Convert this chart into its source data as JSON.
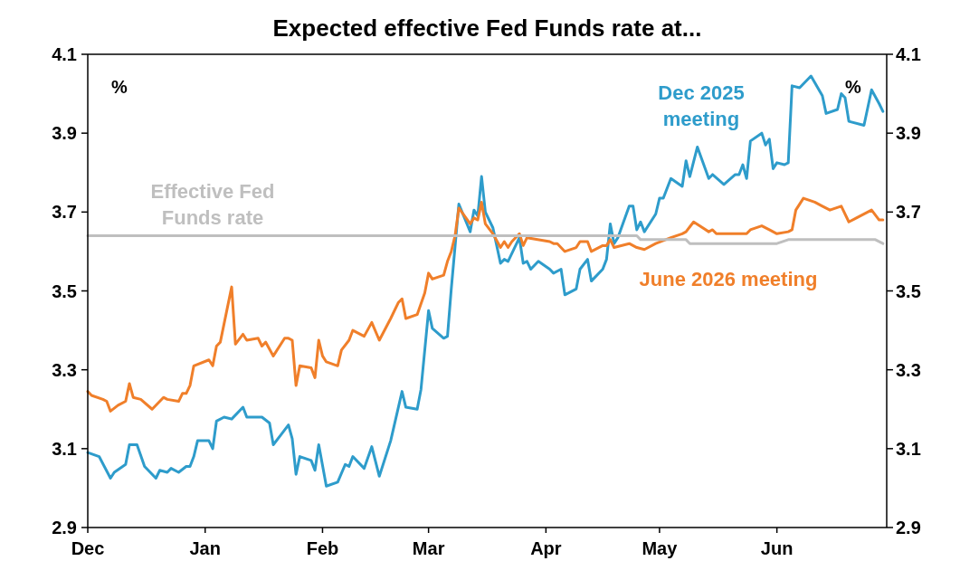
{
  "chart_data": {
    "type": "line",
    "title": "Expected effective Fed Funds rate at...",
    "ylabel": "%",
    "y2label": "%",
    "xlim": [
      "2024-12-01",
      "2025-06-30"
    ],
    "xticks": [
      {
        "value": "2024-12-01",
        "label": "Dec"
      },
      {
        "value": "2025-01-01",
        "label": "Jan"
      },
      {
        "value": "2025-02-01",
        "label": "Feb"
      },
      {
        "value": "2025-03-01",
        "label": "Mar"
      },
      {
        "value": "2025-04-01",
        "label": "Apr"
      },
      {
        "value": "2025-05-01",
        "label": "May"
      },
      {
        "value": "2025-06-01",
        "label": "Jun"
      }
    ],
    "ylim": [
      2.9,
      4.1
    ],
    "yticks": [
      2.9,
      3.1,
      3.3,
      3.5,
      3.7,
      3.9,
      4.1
    ],
    "y2lim": [
      2.9,
      4.1
    ],
    "y2ticks": [
      2.9,
      3.1,
      3.3,
      3.5,
      3.7,
      3.9,
      4.1
    ],
    "grid": false,
    "marker": "none",
    "line_style": "solid",
    "series": [
      {
        "name": "Dec 2025 meeting",
        "color": "#2e9ccb",
        "x": [
          "2024-12-01",
          "2024-12-04",
          "2024-12-07",
          "2024-12-08",
          "2024-12-11",
          "2024-12-12",
          "2024-12-14",
          "2024-12-16",
          "2024-12-19",
          "2024-12-20",
          "2024-12-22",
          "2024-12-23",
          "2024-12-25",
          "2024-12-27",
          "2024-12-28",
          "2024-12-29",
          "2024-12-30",
          "2025-01-02",
          "2025-01-03",
          "2025-01-04",
          "2025-01-06",
          "2025-01-08",
          "2025-01-11",
          "2025-01-12",
          "2025-01-16",
          "2025-01-18",
          "2025-01-19",
          "2025-01-21",
          "2025-01-23",
          "2025-01-24",
          "2025-01-25",
          "2025-01-26",
          "2025-01-29",
          "2025-01-30",
          "2025-01-31",
          "2025-02-02",
          "2025-02-05",
          "2025-02-07",
          "2025-02-08",
          "2025-02-09",
          "2025-02-12",
          "2025-02-14",
          "2025-02-16",
          "2025-02-19",
          "2025-02-22",
          "2025-02-23",
          "2025-02-26",
          "2025-02-27",
          "2025-03-01",
          "2025-03-02",
          "2025-03-05",
          "2025-03-06",
          "2025-03-07",
          "2025-03-09",
          "2025-03-12",
          "2025-03-13",
          "2025-03-14",
          "2025-03-15",
          "2025-03-16",
          "2025-03-18",
          "2025-03-20",
          "2025-03-21",
          "2025-03-22",
          "2025-03-23",
          "2025-03-25",
          "2025-03-26",
          "2025-03-27",
          "2025-03-28",
          "2025-03-30",
          "2025-04-02",
          "2025-04-03",
          "2025-04-05",
          "2025-04-06",
          "2025-04-09",
          "2025-04-10",
          "2025-04-12",
          "2025-04-13",
          "2025-04-16",
          "2025-04-17",
          "2025-04-18",
          "2025-04-19",
          "2025-04-20",
          "2025-04-23",
          "2025-04-24",
          "2025-04-25",
          "2025-04-26",
          "2025-04-27",
          "2025-04-30",
          "2025-05-01",
          "2025-05-02",
          "2025-05-04",
          "2025-05-07",
          "2025-05-08",
          "2025-05-09",
          "2025-05-11",
          "2025-05-14",
          "2025-05-15",
          "2025-05-18",
          "2025-05-21",
          "2025-05-22",
          "2025-05-23",
          "2025-05-24",
          "2025-05-25",
          "2025-05-28",
          "2025-05-29",
          "2025-05-30",
          "2025-05-31",
          "2025-06-01",
          "2025-06-03",
          "2025-06-04",
          "2025-06-05",
          "2025-06-07",
          "2025-06-10",
          "2025-06-13",
          "2025-06-14",
          "2025-06-17",
          "2025-06-18",
          "2025-06-19",
          "2025-06-20",
          "2025-06-24",
          "2025-06-26",
          "2025-06-28",
          "2025-06-29"
        ],
        "values": [
          3.09,
          3.08,
          3.025,
          3.04,
          3.06,
          3.11,
          3.11,
          3.055,
          3.025,
          3.045,
          3.04,
          3.05,
          3.04,
          3.055,
          3.055,
          3.08,
          3.12,
          3.12,
          3.1,
          3.17,
          3.18,
          3.175,
          3.205,
          3.18,
          3.18,
          3.165,
          3.11,
          3.135,
          3.16,
          3.125,
          3.035,
          3.08,
          3.07,
          3.045,
          3.11,
          3.005,
          3.015,
          3.06,
          3.055,
          3.08,
          3.05,
          3.105,
          3.03,
          3.12,
          3.245,
          3.205,
          3.2,
          3.25,
          3.45,
          3.405,
          3.38,
          3.385,
          3.505,
          3.72,
          3.65,
          3.705,
          3.69,
          3.79,
          3.7,
          3.66,
          3.57,
          3.58,
          3.575,
          3.595,
          3.635,
          3.57,
          3.575,
          3.555,
          3.575,
          3.555,
          3.545,
          3.555,
          3.49,
          3.505,
          3.555,
          3.58,
          3.525,
          3.555,
          3.58,
          3.67,
          3.62,
          3.635,
          3.715,
          3.715,
          3.655,
          3.675,
          3.65,
          3.695,
          3.735,
          3.735,
          3.785,
          3.765,
          3.83,
          3.79,
          3.865,
          3.785,
          3.795,
          3.77,
          3.795,
          3.795,
          3.82,
          3.785,
          3.88,
          3.9,
          3.87,
          3.885,
          3.81,
          3.825,
          3.82,
          3.825,
          4.02,
          4.015,
          4.045,
          3.995,
          3.95,
          3.96,
          4.0,
          3.99,
          3.93,
          3.92,
          4.01,
          3.975,
          3.955
        ]
      },
      {
        "name": "June 2026 meeting",
        "color": "#f07f2a",
        "x": [
          "2024-12-01",
          "2024-12-02",
          "2024-12-05",
          "2024-12-06",
          "2024-12-07",
          "2024-12-09",
          "2024-12-11",
          "2024-12-12",
          "2024-12-13",
          "2024-12-15",
          "2024-12-18",
          "2024-12-21",
          "2024-12-22",
          "2024-12-25",
          "2024-12-26",
          "2024-12-27",
          "2024-12-28",
          "2024-12-29",
          "2025-01-02",
          "2025-01-03",
          "2025-01-04",
          "2025-01-05",
          "2025-01-08",
          "2025-01-09",
          "2025-01-11",
          "2025-01-12",
          "2025-01-15",
          "2025-01-16",
          "2025-01-17",
          "2025-01-19",
          "2025-01-22",
          "2025-01-23",
          "2025-01-24",
          "2025-01-25",
          "2025-01-26",
          "2025-01-29",
          "2025-01-30",
          "2025-01-31",
          "2025-02-01",
          "2025-02-02",
          "2025-02-05",
          "2025-02-06",
          "2025-02-08",
          "2025-02-09",
          "2025-02-12",
          "2025-02-14",
          "2025-02-16",
          "2025-02-19",
          "2025-02-21",
          "2025-02-22",
          "2025-02-23",
          "2025-02-26",
          "2025-02-28",
          "2025-03-01",
          "2025-03-02",
          "2025-03-05",
          "2025-03-06",
          "2025-03-07",
          "2025-03-08",
          "2025-03-09",
          "2025-03-12",
          "2025-03-13",
          "2025-03-14",
          "2025-03-15",
          "2025-03-16",
          "2025-03-18",
          "2025-03-20",
          "2025-03-21",
          "2025-03-22",
          "2025-03-23",
          "2025-03-25",
          "2025-03-26",
          "2025-03-27",
          "2025-04-02",
          "2025-04-03",
          "2025-04-04",
          "2025-04-06",
          "2025-04-09",
          "2025-04-10",
          "2025-04-12",
          "2025-04-13",
          "2025-04-16",
          "2025-04-17",
          "2025-04-18",
          "2025-04-19",
          "2025-04-23",
          "2025-04-25",
          "2025-04-27",
          "2025-04-30",
          "2025-05-04",
          "2025-05-07",
          "2025-05-08",
          "2025-05-10",
          "2025-05-14",
          "2025-05-15",
          "2025-05-16",
          "2025-05-18",
          "2025-05-21",
          "2025-05-24",
          "2025-05-25",
          "2025-05-28",
          "2025-05-30",
          "2025-06-01",
          "2025-06-04",
          "2025-06-05",
          "2025-06-06",
          "2025-06-08",
          "2025-06-11",
          "2025-06-13",
          "2025-06-15",
          "2025-06-18",
          "2025-06-20",
          "2025-06-22",
          "2025-06-26",
          "2025-06-28",
          "2025-06-29"
        ],
        "values": [
          3.245,
          3.235,
          3.225,
          3.22,
          3.195,
          3.21,
          3.22,
          3.265,
          3.23,
          3.225,
          3.2,
          3.23,
          3.225,
          3.22,
          3.24,
          3.24,
          3.26,
          3.31,
          3.325,
          3.31,
          3.36,
          3.37,
          3.51,
          3.365,
          3.39,
          3.375,
          3.38,
          3.36,
          3.37,
          3.335,
          3.38,
          3.38,
          3.375,
          3.26,
          3.31,
          3.305,
          3.28,
          3.375,
          3.335,
          3.32,
          3.31,
          3.35,
          3.375,
          3.4,
          3.385,
          3.42,
          3.375,
          3.43,
          3.47,
          3.48,
          3.43,
          3.44,
          3.495,
          3.545,
          3.53,
          3.54,
          3.575,
          3.6,
          3.64,
          3.71,
          3.67,
          3.685,
          3.68,
          3.725,
          3.67,
          3.645,
          3.61,
          3.625,
          3.61,
          3.625,
          3.645,
          3.615,
          3.635,
          3.625,
          3.62,
          3.62,
          3.6,
          3.61,
          3.625,
          3.625,
          3.6,
          3.615,
          3.615,
          3.63,
          3.61,
          3.62,
          3.61,
          3.605,
          3.62,
          3.635,
          3.645,
          3.65,
          3.675,
          3.65,
          3.655,
          3.645,
          3.645,
          3.645,
          3.645,
          3.655,
          3.665,
          3.655,
          3.645,
          3.65,
          3.655,
          3.705,
          3.735,
          3.725,
          3.715,
          3.705,
          3.715,
          3.675,
          3.685,
          3.705,
          3.68,
          3.68
        ]
      },
      {
        "name": "Effective Fed Funds rate",
        "color": "#bfbfbf",
        "x": [
          "2024-12-01",
          "2025-04-25",
          "2025-04-26",
          "2025-05-08",
          "2025-05-09",
          "2025-06-01",
          "2025-06-04",
          "2025-06-27",
          "2025-06-29"
        ],
        "values": [
          3.64,
          3.64,
          3.63,
          3.63,
          3.62,
          3.62,
          3.63,
          3.63,
          3.62
        ]
      }
    ]
  }
}
